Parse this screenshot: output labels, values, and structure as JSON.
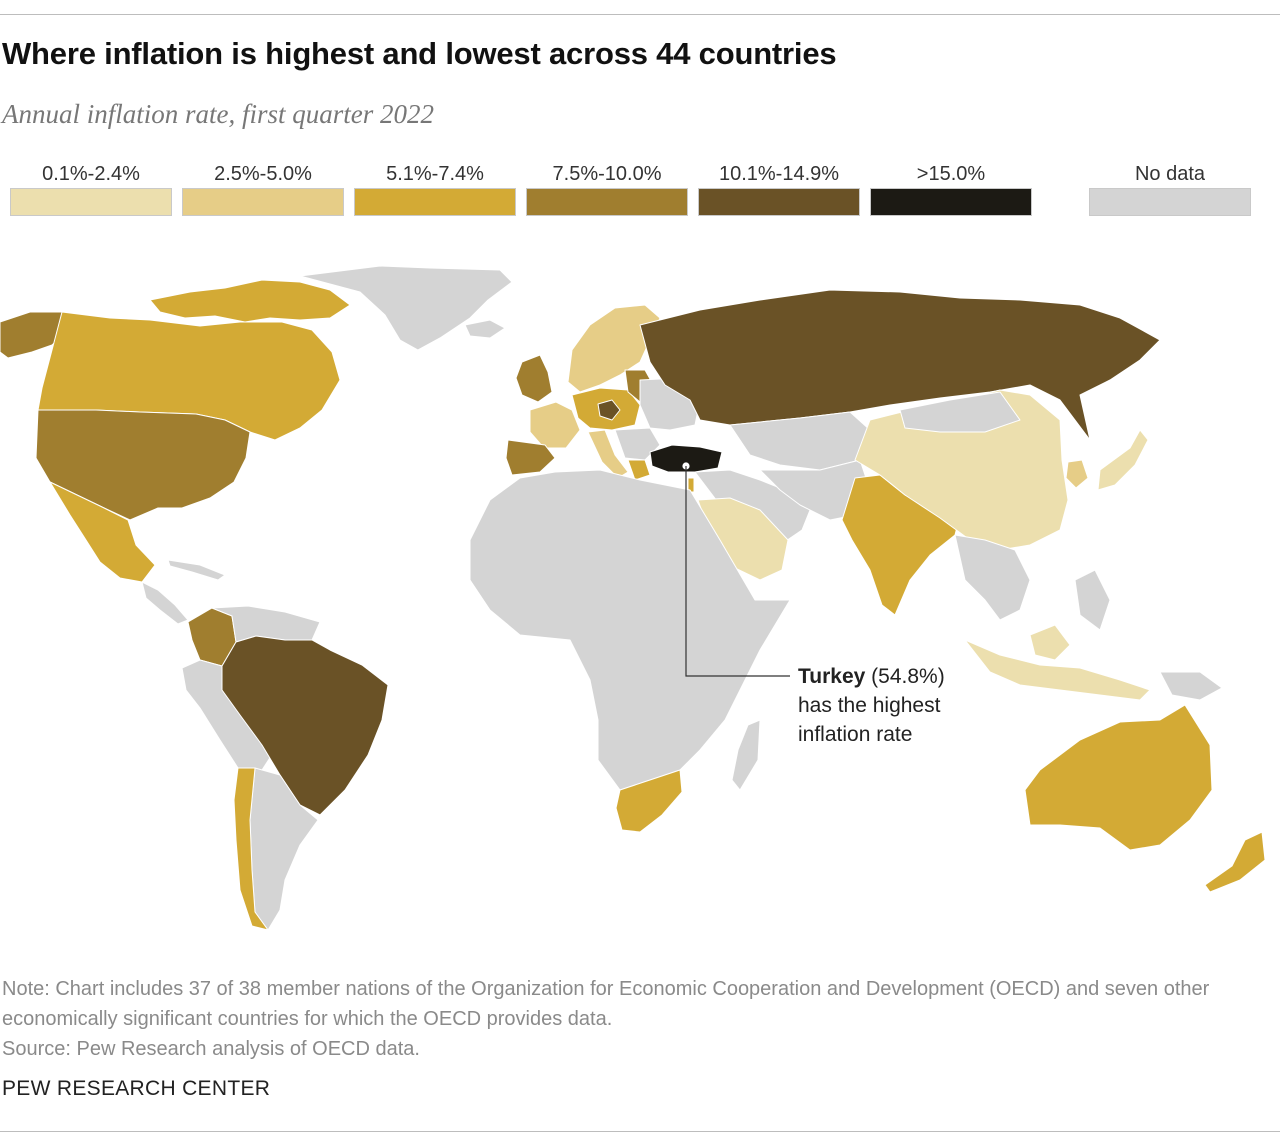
{
  "title": "Where inflation is highest and lowest across 44 countries",
  "subtitle": "Annual inflation rate, first quarter 2022",
  "legend": [
    {
      "label": "0.1%-2.4%",
      "color": "#ecdfae"
    },
    {
      "label": "2.5%-5.0%",
      "color": "#e6cd87"
    },
    {
      "label": "5.1%-7.4%",
      "color": "#d3aa35"
    },
    {
      "label": "7.5%-10.0%",
      "color": "#a07e2f"
    },
    {
      "label": "10.1%-14.9%",
      "color": "#6a5226"
    },
    {
      "label": ">15.0%",
      "color": "#1c1a14"
    }
  ],
  "no_data": {
    "label": "No data",
    "color": "#d4d4d4"
  },
  "callout": {
    "country": "Turkey",
    "value": "(54.8%)",
    "line1": "has the highest",
    "line2": "inflation rate"
  },
  "note": "Note: Chart includes 37 of 38 member nations of the Organization for Economic Cooperation and Development (OECD) and seven other economically significant countries for which the OECD provides data.",
  "source": "Source: Pew Research analysis of OECD data.",
  "credit": "PEW RESEARCH CENTER"
}
